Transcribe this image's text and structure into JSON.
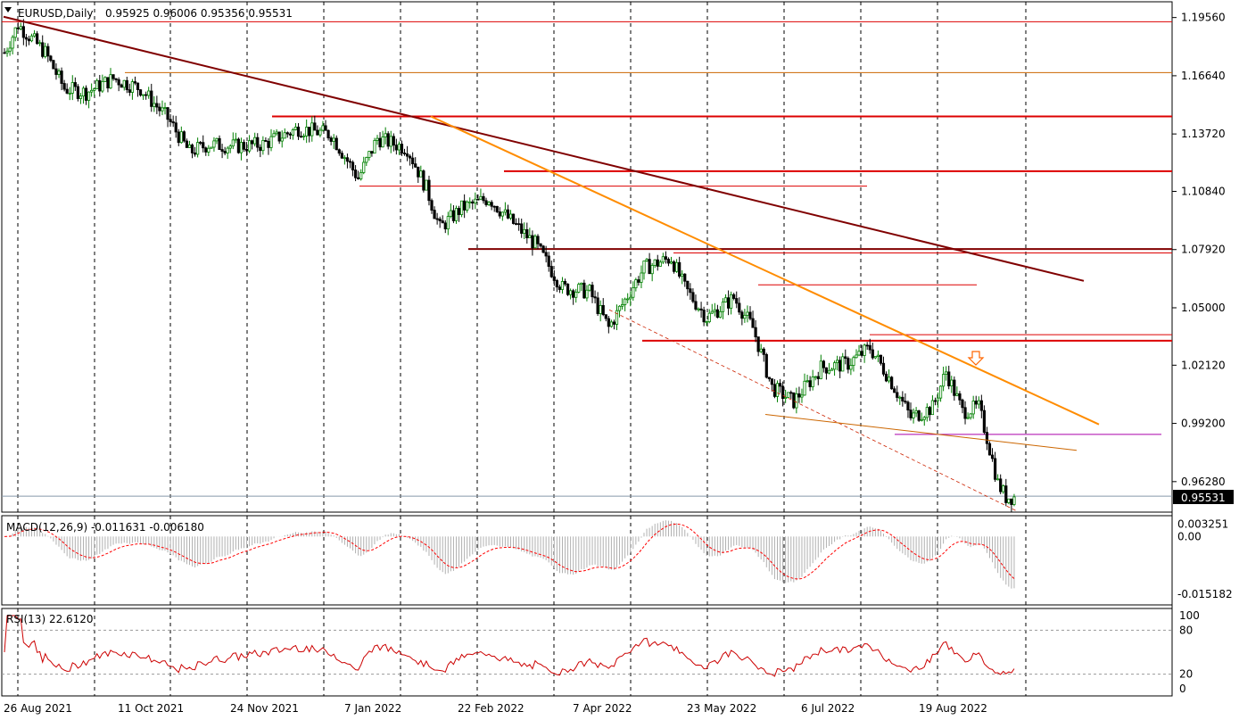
{
  "header": {
    "symbol": "EURUSD,Daily",
    "ohlc": "0.95925 0.96006 0.95356 0.95531"
  },
  "colors": {
    "bull": "#008000",
    "bear": "#000000",
    "trend_main": "#800000",
    "trend_orange": "#ff8c00",
    "hline_red": "#dd0000",
    "signal": "#ff0000",
    "price_tag_bg": "#000000"
  },
  "chart_data": [
    {
      "type": "candlestick",
      "title": "EURUSD,Daily",
      "y_ticks": [
        "1.19560",
        "1.16640",
        "1.13720",
        "1.10840",
        "1.07920",
        "1.05000",
        "1.02120",
        "0.99200",
        "0.96280"
      ],
      "current_price": "0.95531",
      "ylim": [
        0.9475,
        1.2035
      ],
      "x_ticks": [
        "26 Aug 2021",
        "11 Oct 2021",
        "24 Nov 2021",
        "7 Jan 2022",
        "22 Feb 2022",
        "7 Apr 2022",
        "23 May 2022",
        "6 Jul 2022",
        "19 Aug 2022"
      ],
      "price_path": [
        [
          0,
          1.178
        ],
        [
          5,
          1.192
        ],
        [
          15,
          1.178
        ],
        [
          22,
          1.16
        ],
        [
          30,
          1.158
        ],
        [
          40,
          1.165
        ],
        [
          50,
          1.16
        ],
        [
          60,
          1.145
        ],
        [
          68,
          1.128
        ],
        [
          75,
          1.132
        ],
        [
          85,
          1.131
        ],
        [
          95,
          1.132
        ],
        [
          108,
          1.14
        ],
        [
          120,
          1.137
        ],
        [
          130,
          1.115
        ],
        [
          137,
          1.135
        ],
        [
          148,
          1.13
        ],
        [
          155,
          1.11
        ],
        [
          160,
          1.09
        ],
        [
          168,
          1.1
        ],
        [
          178,
          1.105
        ],
        [
          185,
          1.095
        ],
        [
          195,
          1.082
        ],
        [
          205,
          1.06
        ],
        [
          215,
          1.058
        ],
        [
          222,
          1.04
        ],
        [
          235,
          1.07
        ],
        [
          245,
          1.075
        ],
        [
          250,
          1.06
        ],
        [
          258,
          1.045
        ],
        [
          268,
          1.055
        ],
        [
          275,
          1.04
        ],
        [
          282,
          1.01
        ],
        [
          290,
          1.003
        ],
        [
          300,
          1.02
        ],
        [
          310,
          1.022
        ],
        [
          318,
          1.03
        ],
        [
          325,
          1.015
        ],
        [
          333,
          0.995
        ],
        [
          341,
          1.0
        ],
        [
          346,
          1.018
        ],
        [
          352,
          0.998
        ],
        [
          358,
          1.0
        ],
        [
          361,
          0.985
        ],
        [
          365,
          0.962
        ],
        [
          368,
          0.955
        ]
      ],
      "annotations": [
        "sell-arrow"
      ]
    },
    {
      "type": "line",
      "title": "MACD(12,26,9) -0.011631 -0.006180",
      "y_ticks": [
        "0.003251",
        "0.00",
        "-0.015182"
      ]
    },
    {
      "type": "line",
      "title": "RSI(13) 22.6120",
      "y_ticks": [
        "100",
        "80",
        "20",
        "0"
      ],
      "levels": [
        80,
        20
      ]
    }
  ]
}
